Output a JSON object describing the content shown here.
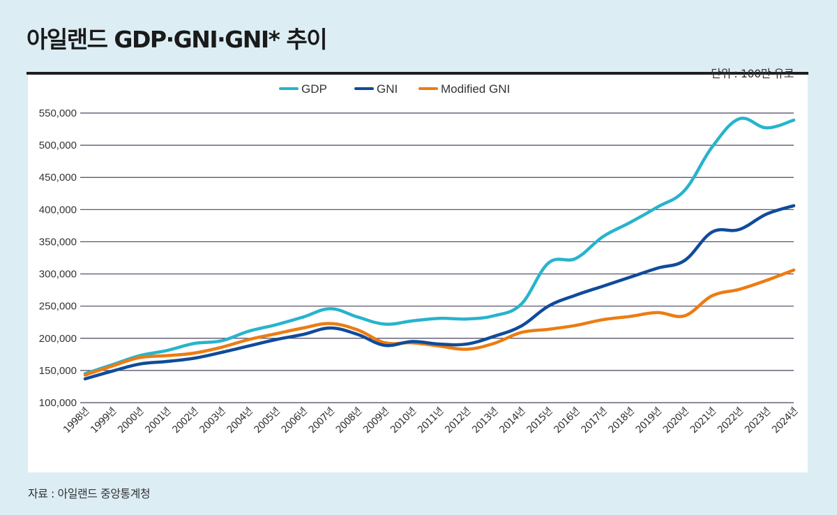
{
  "header": {
    "title": "아일랜드 GDP·GNI·GNI* 추이",
    "unit": "단위 : 100만 유로"
  },
  "footer": {
    "source": "자료 : 아일랜드 중앙통계청"
  },
  "chart_data": {
    "type": "line",
    "title": "아일랜드 GDP·GNI·GNI* 추이",
    "xlabel": "",
    "ylabel": "",
    "unit": "100만 유로",
    "ylim": [
      100000,
      550000
    ],
    "yticks": [
      100000,
      150000,
      200000,
      250000,
      300000,
      350000,
      400000,
      450000,
      500000,
      550000
    ],
    "ytick_labels": [
      "100,000",
      "150,000",
      "200,000",
      "250,000",
      "300,000",
      "350,000",
      "400,000",
      "450,000",
      "500,000",
      "550,000"
    ],
    "grid": true,
    "legend_position": "top-center",
    "x": [
      "1998년",
      "1999년",
      "2000년",
      "2001년",
      "2002년",
      "2003년",
      "2004년",
      "2005년",
      "2006년",
      "2007년",
      "2008년",
      "2009년",
      "2010년",
      "2011년",
      "2012년",
      "2013년",
      "2014년",
      "2015년",
      "2016년",
      "2017년",
      "2018년",
      "2019년",
      "2020년",
      "2021년",
      "2022년",
      "2023년",
      "2024년"
    ],
    "series": [
      {
        "name": "GDP",
        "color": "#27b4cc",
        "values": [
          145000,
          159000,
          173000,
          181000,
          192000,
          196000,
          211000,
          221000,
          233000,
          246000,
          233000,
          222000,
          227000,
          231000,
          230000,
          235000,
          253000,
          317000,
          324000,
          358000,
          380000,
          404000,
          430000,
          497000,
          541000,
          527000,
          539000
        ]
      },
      {
        "name": "GNI",
        "color": "#0f4b9b",
        "values": [
          137000,
          149000,
          160000,
          164000,
          169000,
          178000,
          188000,
          198000,
          206000,
          216000,
          206000,
          189000,
          195000,
          191000,
          191000,
          203000,
          219000,
          250000,
          267000,
          281000,
          295000,
          309000,
          321000,
          365000,
          369000,
          393000,
          406000
        ]
      },
      {
        "name": "Modified GNI",
        "color": "#ec7c12",
        "values": [
          143000,
          157000,
          170000,
          173000,
          177000,
          186000,
          198000,
          207000,
          216000,
          223000,
          213000,
          193000,
          193000,
          188000,
          183000,
          192000,
          209000,
          214000,
          220000,
          229000,
          234000,
          240000,
          235000,
          266000,
          276000,
          290000,
          306000
        ]
      }
    ]
  }
}
